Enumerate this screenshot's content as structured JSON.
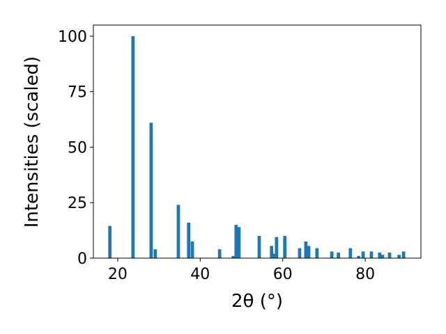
{
  "chart_data": {
    "type": "bar",
    "x_label": "2θ (°)",
    "y_label": "Intensities (scaled)",
    "x": [
      18.1,
      23.7,
      28.1,
      29.1,
      34.7,
      37.2,
      38.1,
      44.7,
      48.0,
      48.7,
      49.4,
      54.3,
      57.3,
      58.0,
      58.5,
      60.5,
      64.1,
      65.6,
      66.3,
      68.3,
      71.9,
      73.5,
      76.4,
      78.4,
      79.5,
      81.5,
      83.5,
      84.2,
      85.9,
      88.2,
      89.3
    ],
    "values": [
      14.5,
      100,
      61,
      4,
      24,
      16,
      7.5,
      4,
      1,
      15,
      14,
      10,
      5.5,
      2,
      9.5,
      10,
      4.5,
      7.5,
      5.5,
      4.5,
      3,
      2.5,
      4.5,
      1,
      3,
      3,
      2.5,
      1.5,
      2.5,
      1.5,
      3
    ],
    "color": "#1f77b4",
    "xlim": [
      14.1,
      93.5
    ],
    "xticks": [
      20,
      40,
      60,
      80
    ],
    "ylim": [
      0,
      105
    ],
    "yticks": [
      0,
      25,
      50,
      75,
      100
    ]
  }
}
